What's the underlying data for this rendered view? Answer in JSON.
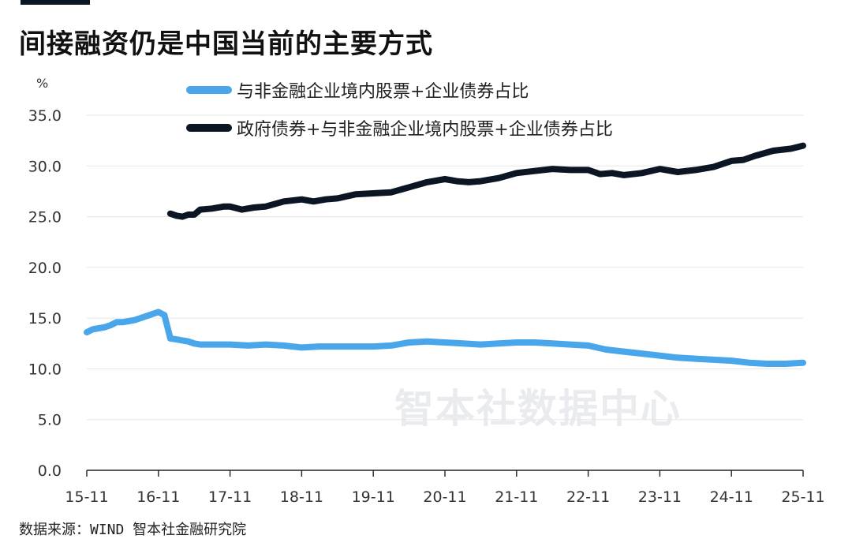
{
  "title": "间接融资仍是中国当前的主要方式",
  "unit": "%",
  "watermark": "智本社数据中心",
  "source": "数据来源：WIND 智本社金融研究院",
  "chart_data": {
    "type": "line",
    "title": "间接融资仍是中国当前的主要方式",
    "ylabel": "%",
    "ylim": [
      0,
      35
    ],
    "yticks": [
      "0.0",
      "5.0",
      "10.0",
      "15.0",
      "20.0",
      "25.0",
      "30.0",
      "35.0"
    ],
    "xticks": [
      "15-11",
      "16-11",
      "17-11",
      "18-11",
      "19-11",
      "20-11",
      "21-11",
      "22-11",
      "23-11",
      "24-11",
      "25-11"
    ],
    "grid": true,
    "legend_position": "top",
    "series": [
      {
        "name": "与非金融企业境内股票+企业债券占比",
        "color": "#4aa6ea",
        "points": [
          [
            "15-11",
            13.6
          ],
          [
            "15-12",
            13.9
          ],
          [
            "16-01",
            14.0
          ],
          [
            "16-02",
            14.1
          ],
          [
            "16-03",
            14.3
          ],
          [
            "16-04",
            14.6
          ],
          [
            "16-05",
            14.6
          ],
          [
            "16-06",
            14.7
          ],
          [
            "16-07",
            14.8
          ],
          [
            "16-08",
            15.0
          ],
          [
            "16-09",
            15.2
          ],
          [
            "16-10",
            15.4
          ],
          [
            "16-11",
            15.6
          ],
          [
            "16-12",
            15.3
          ],
          [
            "17-01",
            13.0
          ],
          [
            "17-02",
            12.9
          ],
          [
            "17-03",
            12.8
          ],
          [
            "17-04",
            12.7
          ],
          [
            "17-05",
            12.5
          ],
          [
            "17-06",
            12.4
          ],
          [
            "17-08",
            12.4
          ],
          [
            "17-11",
            12.4
          ],
          [
            "18-02",
            12.3
          ],
          [
            "18-05",
            12.4
          ],
          [
            "18-08",
            12.3
          ],
          [
            "18-11",
            12.1
          ],
          [
            "19-02",
            12.2
          ],
          [
            "19-05",
            12.2
          ],
          [
            "19-08",
            12.2
          ],
          [
            "19-11",
            12.2
          ],
          [
            "20-02",
            12.3
          ],
          [
            "20-05",
            12.6
          ],
          [
            "20-08",
            12.7
          ],
          [
            "20-11",
            12.6
          ],
          [
            "21-02",
            12.5
          ],
          [
            "21-05",
            12.4
          ],
          [
            "21-08",
            12.5
          ],
          [
            "21-11",
            12.6
          ],
          [
            "22-02",
            12.6
          ],
          [
            "22-05",
            12.5
          ],
          [
            "22-08",
            12.4
          ],
          [
            "22-11",
            12.3
          ],
          [
            "23-02",
            11.9
          ],
          [
            "23-05",
            11.7
          ],
          [
            "23-08",
            11.5
          ],
          [
            "23-11",
            11.3
          ],
          [
            "24-02",
            11.1
          ],
          [
            "24-05",
            11.0
          ],
          [
            "24-08",
            10.9
          ],
          [
            "24-11",
            10.8
          ],
          [
            "25-02",
            10.6
          ],
          [
            "25-05",
            10.5
          ],
          [
            "25-08",
            10.5
          ],
          [
            "25-11",
            10.6
          ]
        ]
      },
      {
        "name": "政府债券+与非金融企业境内股票+企业债券占比",
        "color": "#0b1524",
        "points": [
          [
            "17-01",
            25.3
          ],
          [
            "17-02",
            25.1
          ],
          [
            "17-03",
            25.0
          ],
          [
            "17-04",
            25.2
          ],
          [
            "17-05",
            25.2
          ],
          [
            "17-06",
            25.7
          ],
          [
            "17-08",
            25.8
          ],
          [
            "17-10",
            26.0
          ],
          [
            "17-11",
            26.0
          ],
          [
            "18-01",
            25.7
          ],
          [
            "18-03",
            25.9
          ],
          [
            "18-05",
            26.0
          ],
          [
            "18-08",
            26.5
          ],
          [
            "18-11",
            26.7
          ],
          [
            "19-01",
            26.5
          ],
          [
            "19-03",
            26.7
          ],
          [
            "19-05",
            26.8
          ],
          [
            "19-08",
            27.2
          ],
          [
            "19-11",
            27.3
          ],
          [
            "20-02",
            27.4
          ],
          [
            "20-05",
            27.9
          ],
          [
            "20-08",
            28.4
          ],
          [
            "20-11",
            28.7
          ],
          [
            "21-01",
            28.5
          ],
          [
            "21-03",
            28.4
          ],
          [
            "21-05",
            28.5
          ],
          [
            "21-08",
            28.8
          ],
          [
            "21-11",
            29.3
          ],
          [
            "22-02",
            29.5
          ],
          [
            "22-05",
            29.7
          ],
          [
            "22-08",
            29.6
          ],
          [
            "22-11",
            29.6
          ],
          [
            "23-01",
            29.2
          ],
          [
            "23-03",
            29.3
          ],
          [
            "23-05",
            29.1
          ],
          [
            "23-08",
            29.3
          ],
          [
            "23-11",
            29.7
          ],
          [
            "24-02",
            29.4
          ],
          [
            "24-05",
            29.6
          ],
          [
            "24-08",
            29.9
          ],
          [
            "24-11",
            30.5
          ],
          [
            "25-01",
            30.6
          ],
          [
            "25-03",
            31.0
          ],
          [
            "25-06",
            31.5
          ],
          [
            "25-09",
            31.7
          ],
          [
            "25-11",
            32.0
          ]
        ]
      }
    ]
  }
}
